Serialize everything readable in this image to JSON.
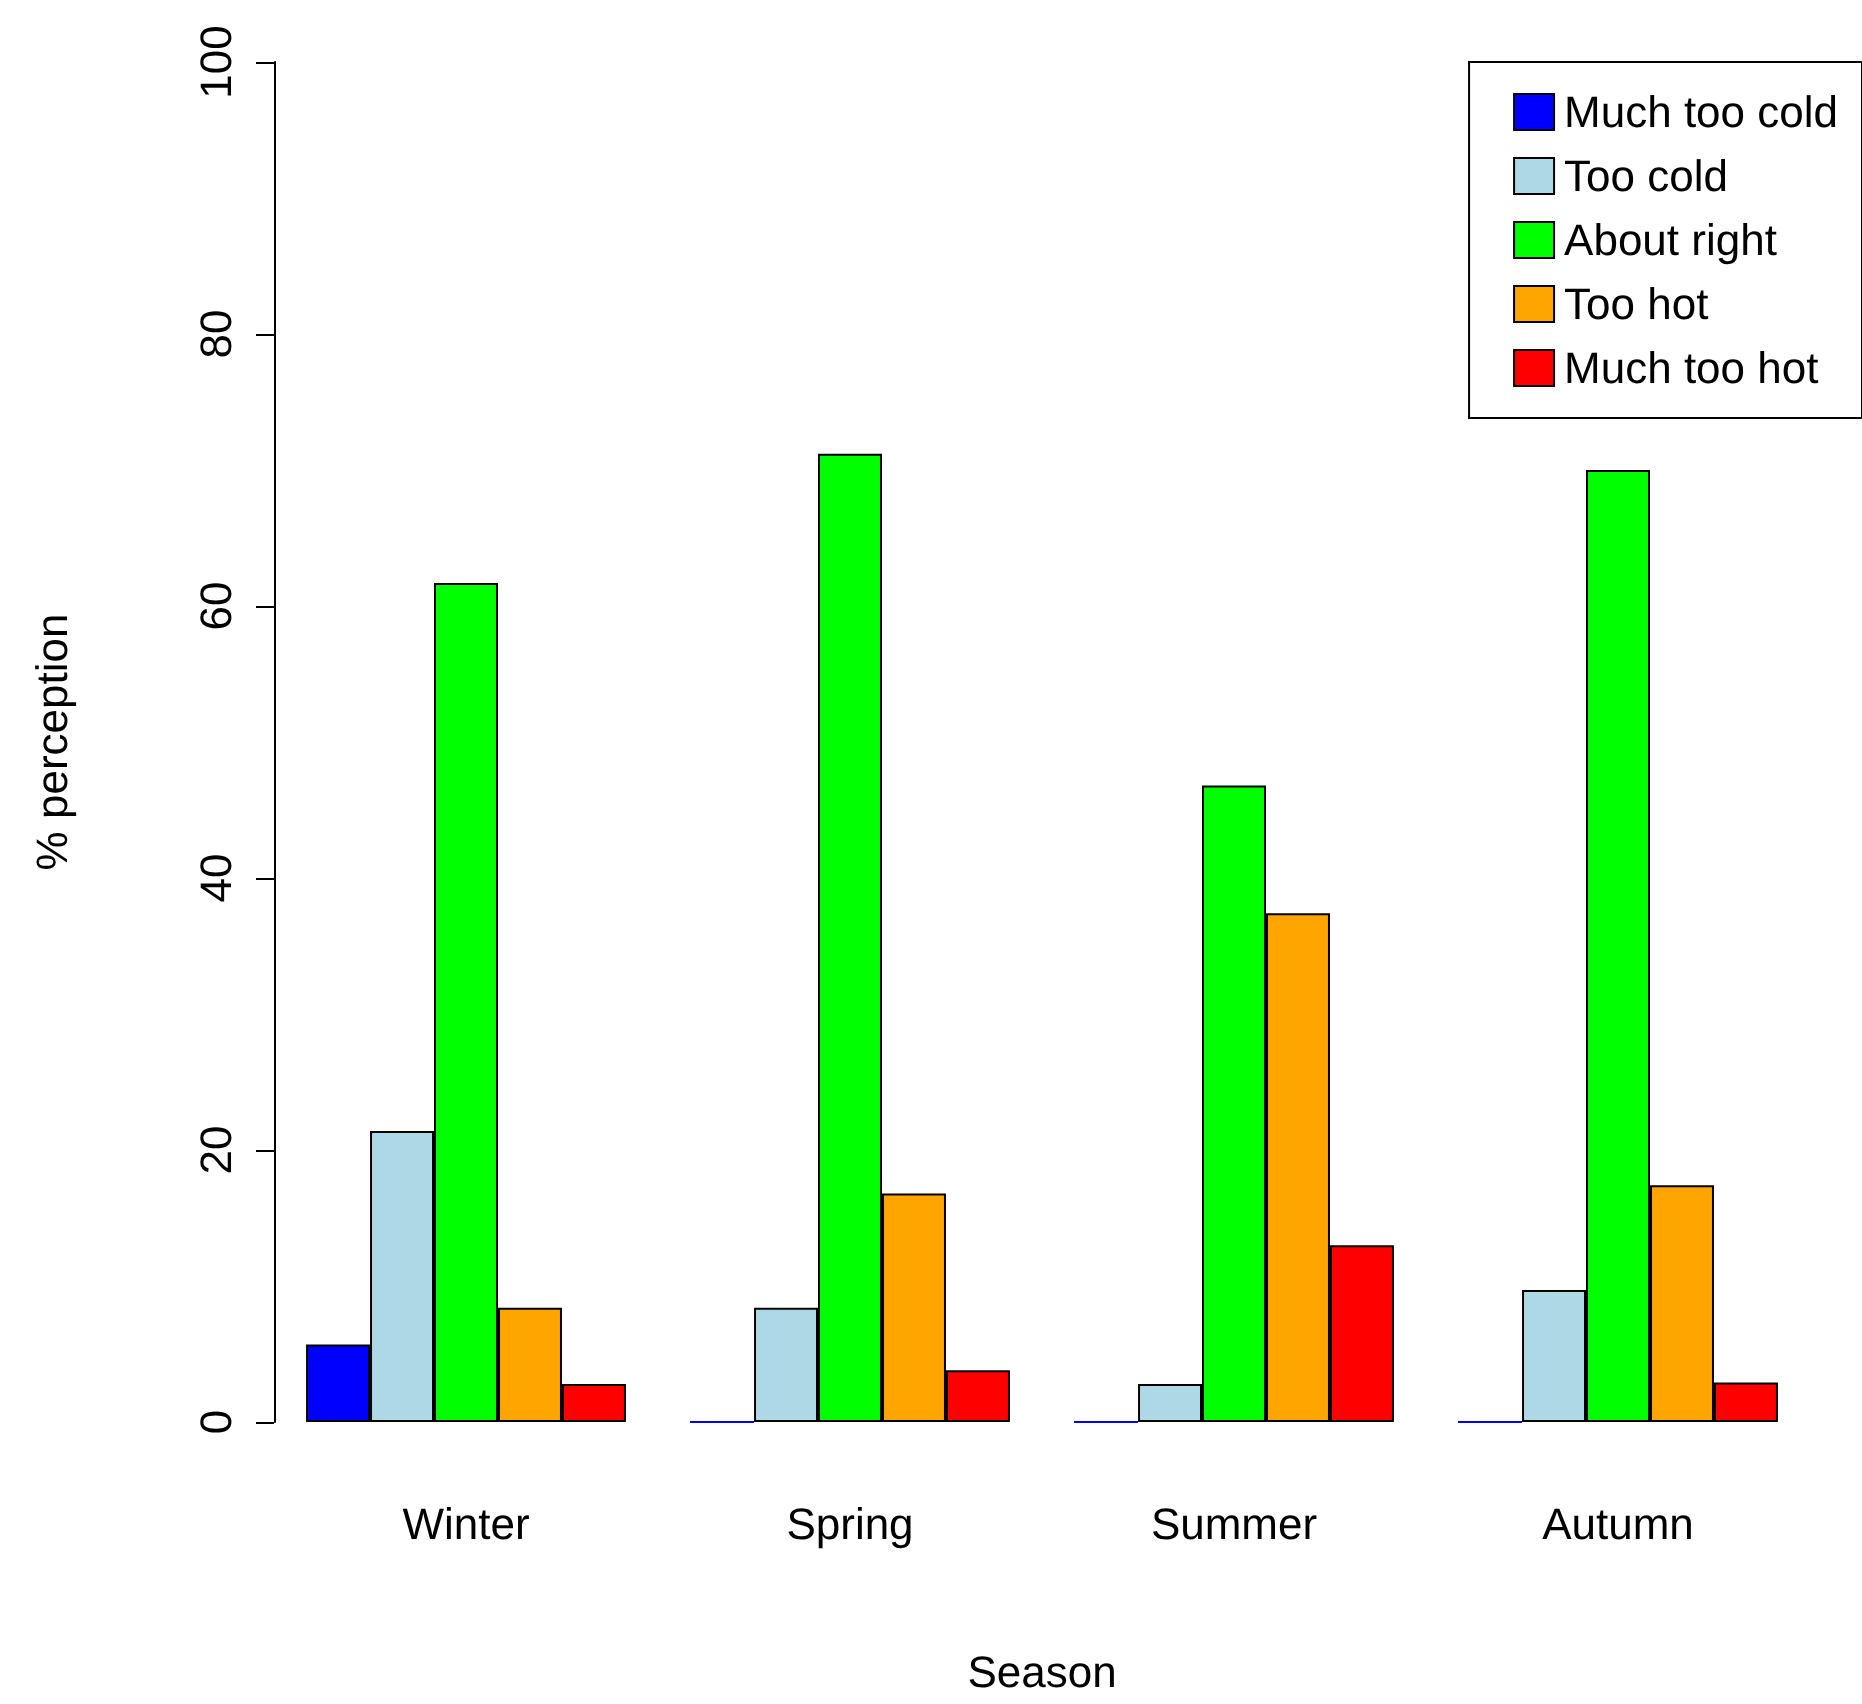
{
  "chart_data": {
    "type": "bar",
    "xlabel": "Season",
    "ylabel": "% perception",
    "categories": [
      "Winter",
      "Spring",
      "Summer",
      "Autumn"
    ],
    "series": [
      {
        "name": "Much too cold",
        "color": "#0000ff",
        "values": [
          5.7,
          0,
          0,
          0
        ]
      },
      {
        "name": "Too cold",
        "color": "#add8e6",
        "values": [
          21.4,
          8.4,
          2.8,
          9.7
        ]
      },
      {
        "name": "About right",
        "color": "#00ff00",
        "values": [
          61.7,
          71.2,
          46.8,
          70.0
        ]
      },
      {
        "name": "Too hot",
        "color": "#ffa500",
        "values": [
          8.4,
          16.8,
          37.4,
          17.4
        ]
      },
      {
        "name": "Much too hot",
        "color": "#ff0000",
        "values": [
          2.8,
          3.8,
          13.0,
          2.9
        ]
      }
    ],
    "ylim": [
      0,
      100
    ],
    "yticks": [
      0,
      20,
      40,
      60,
      80,
      100
    ],
    "grid": false,
    "legend": "top right"
  }
}
